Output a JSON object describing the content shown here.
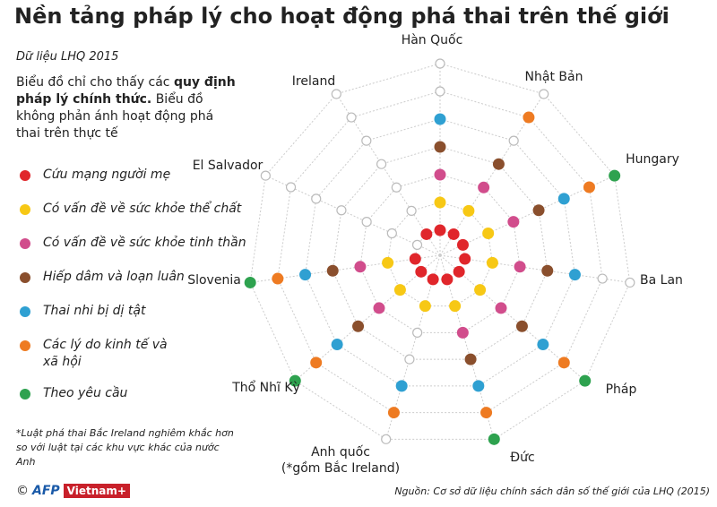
{
  "chart_data": {
    "type": "radial-dot",
    "title": "Nền tảng pháp lý cho hoạt động phá thai trên thế giới",
    "subtitle": "Dữ liệu LHQ 2015",
    "note": [
      "Biểu đồ chỉ cho thấy các ",
      "quy định pháp lý chính thức.",
      " Biểu đồ không phản ánh hoạt động phá thai trên thực tế"
    ],
    "footnote": "*Luật phá thai Bắc Ireland nghiêm khắc hơn so với luật tại các khu vực khác của nước Anh",
    "source": "Nguồn: Cơ sở dữ liệu chính sách dân số thế giới của LHQ (2015)",
    "credits": [
      "©",
      "AFP",
      "Vietnam+"
    ],
    "categories": [
      "Hàn Quốc",
      "Nhật Bản",
      "Hungary",
      "Ba Lan",
      "Pháp",
      "Đức",
      "Anh quốc (*gồm Bắc Ireland)",
      "Thổ Nhĩ Kỳ",
      "Slovenia",
      "El Salvador",
      "Ireland"
    ],
    "series": [
      {
        "name": "Cứu mạng người mẹ",
        "color": "#e0262b",
        "permitted": [
          true,
          true,
          true,
          true,
          true,
          true,
          true,
          true,
          true,
          false,
          true
        ]
      },
      {
        "name": "Có vấn đề về sức khỏe thể chất",
        "color": "#f7c815",
        "permitted": [
          true,
          true,
          true,
          true,
          true,
          true,
          true,
          true,
          true,
          false,
          false
        ]
      },
      {
        "name": "Có vấn đề về sức khỏe tinh thần",
        "color": "#d14d8c",
        "permitted": [
          true,
          true,
          true,
          true,
          true,
          true,
          false,
          true,
          true,
          false,
          false
        ]
      },
      {
        "name": "Hiếp dâm và loạn luân",
        "color": "#8a4f2d",
        "permitted": [
          true,
          true,
          true,
          true,
          true,
          true,
          false,
          true,
          true,
          false,
          false
        ]
      },
      {
        "name": "Thai nhi bị dị tật",
        "color": "#2fa0d2",
        "permitted": [
          true,
          false,
          true,
          true,
          true,
          true,
          true,
          true,
          true,
          false,
          false
        ]
      },
      {
        "name": "Các lý do kinh tế và xã hội",
        "color": "#ee7b22",
        "permitted": [
          false,
          true,
          true,
          false,
          true,
          true,
          true,
          true,
          true,
          false,
          false
        ]
      },
      {
        "name": "Theo yêu cầu",
        "color": "#2ea24f",
        "permitted": [
          false,
          false,
          true,
          false,
          true,
          true,
          false,
          true,
          true,
          false,
          false
        ]
      }
    ]
  }
}
